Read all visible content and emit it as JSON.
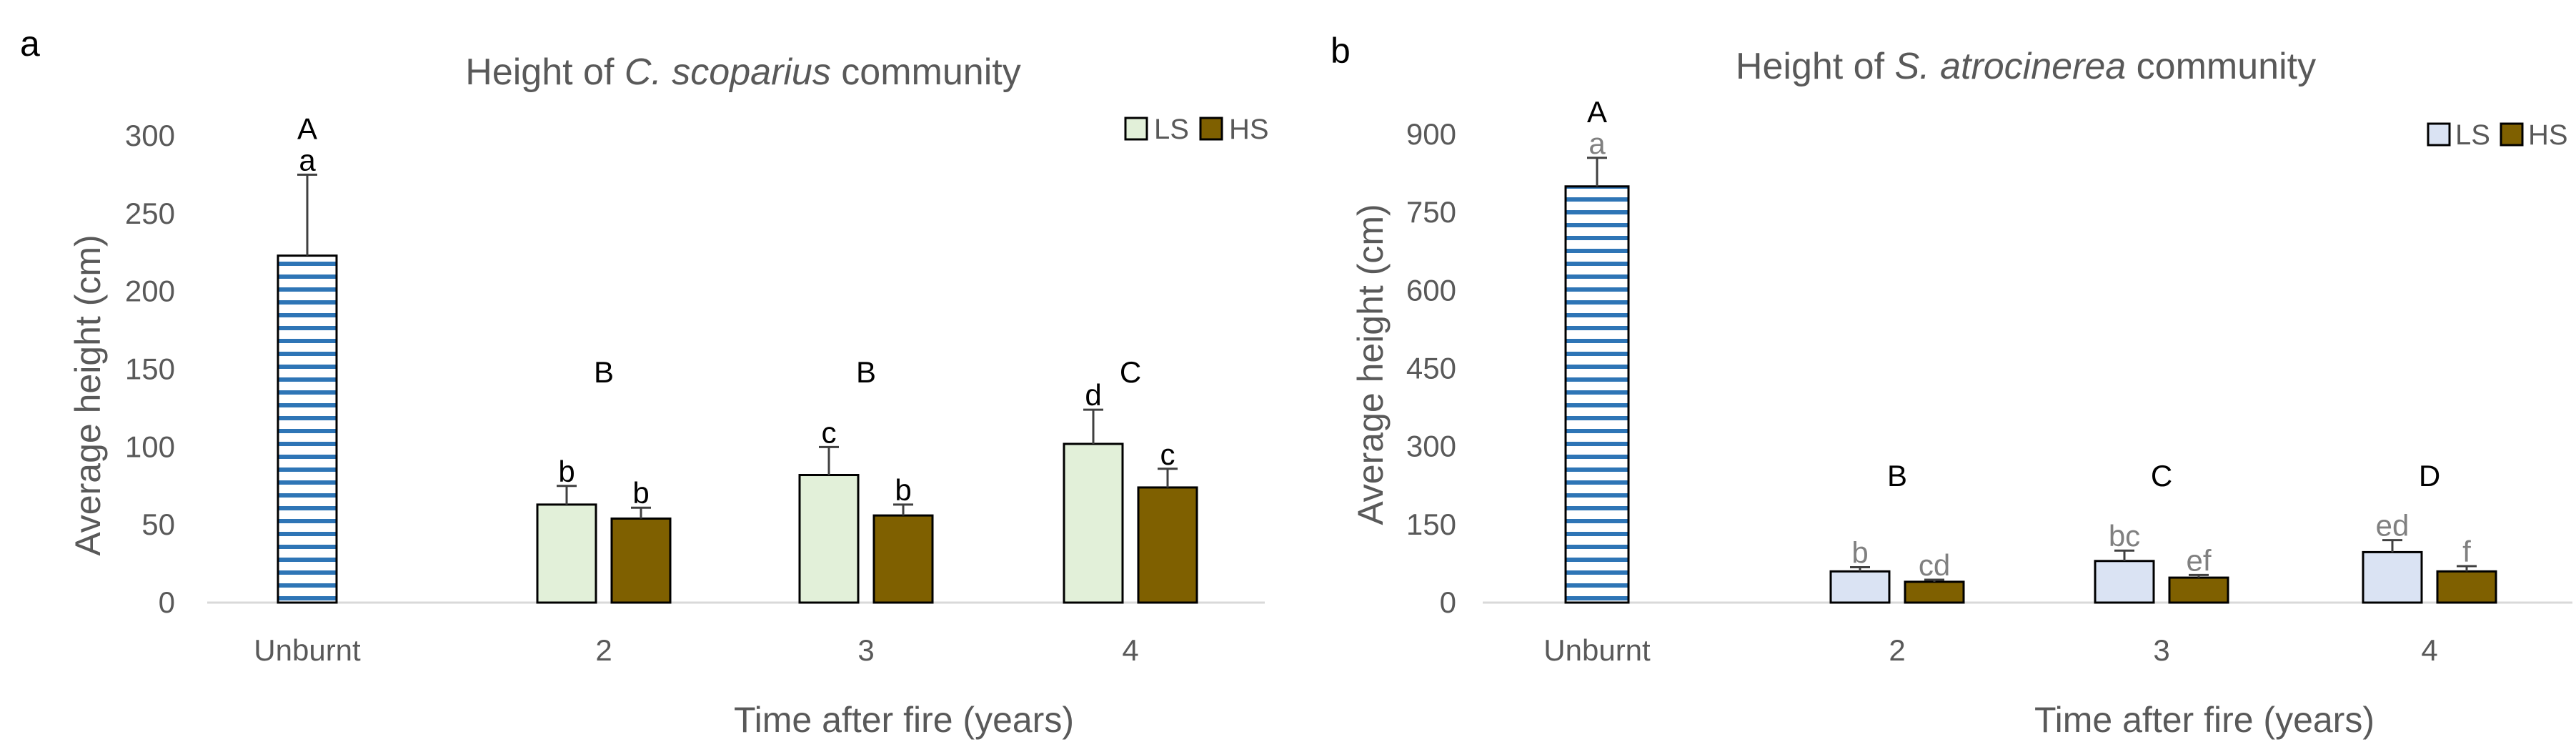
{
  "chart_data": [
    {
      "panel": "a",
      "type": "bar",
      "title_prefix": "Height of ",
      "title_species": "C. scoparius",
      "title_suffix": " community",
      "xlabel": "Time after fire (years)",
      "ylabel": "Average height (cm)",
      "ylim": [
        0,
        300
      ],
      "yticks": [
        0,
        50,
        100,
        150,
        200,
        250,
        300
      ],
      "categories": [
        "Unburnt",
        "2",
        "3",
        "4"
      ],
      "unburnt": {
        "value": 223,
        "error": 52,
        "letter": "a"
      },
      "series": [
        {
          "name": "LS",
          "color": "#e2f0d9",
          "values": [
            null,
            63,
            82,
            102
          ],
          "errors": [
            null,
            12,
            18,
            22
          ],
          "letters": [
            null,
            "b",
            "c",
            "d"
          ]
        },
        {
          "name": "HS",
          "color": "#7f6000",
          "values": [
            null,
            54,
            56,
            74
          ],
          "errors": [
            null,
            7,
            7,
            12
          ],
          "letters": [
            null,
            "b",
            "b",
            "c"
          ]
        }
      ],
      "group_letters": [
        "A",
        "B",
        "B",
        "C"
      ],
      "letter_color": "#000000",
      "legend_position": "top-right",
      "unburnt_stripe_color": "#2e75b6"
    },
    {
      "panel": "b",
      "type": "bar",
      "title_prefix": "Height of ",
      "title_species": "S. atrocinerea",
      "title_suffix": " community",
      "xlabel": "Time after fire (years)",
      "ylabel": "Average height (cm)",
      "ylim": [
        0,
        900
      ],
      "yticks": [
        0,
        150,
        300,
        450,
        600,
        750,
        900
      ],
      "categories": [
        "Unburnt",
        "2",
        "3",
        "4"
      ],
      "unburnt": {
        "value": 800,
        "error": 55,
        "letter": "a"
      },
      "series": [
        {
          "name": "LS",
          "color": "#dae3f3",
          "values": [
            null,
            60,
            80,
            97
          ],
          "errors": [
            null,
            8,
            20,
            23
          ],
          "letters": [
            null,
            "b",
            "bc",
            "ed"
          ]
        },
        {
          "name": "HS",
          "color": "#7f6000",
          "values": [
            null,
            40,
            48,
            60
          ],
          "errors": [
            null,
            4,
            5,
            10
          ],
          "letters": [
            null,
            "cd",
            "ef",
            "f"
          ]
        }
      ],
      "group_letters": [
        "A",
        "B",
        "C",
        "D"
      ],
      "letter_color": "#808080",
      "legend_position": "top-right",
      "unburnt_stripe_color": "#2e75b6"
    }
  ]
}
